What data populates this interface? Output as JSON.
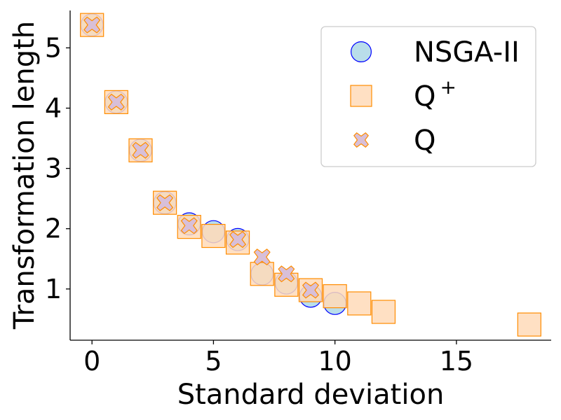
{
  "chart_data": {
    "type": "scatter",
    "xlabel": "Standard deviation",
    "ylabel": "Transformation length",
    "xlim": [
      -0.9,
      18.9
    ],
    "ylim": [
      0.15,
      5.62
    ],
    "xticks": [
      0,
      5,
      10,
      15
    ],
    "yticks": [
      1,
      2,
      3,
      4,
      5
    ],
    "grid": false,
    "legend_position": "top-right",
    "series": [
      {
        "name": "NSGA-II",
        "marker": "circle",
        "fill": "#add8e6",
        "edge": "#0000ff",
        "points": [
          {
            "x": 0,
            "y": 5.38
          },
          {
            "x": 1,
            "y": 4.1
          },
          {
            "x": 2,
            "y": 3.3
          },
          {
            "x": 3,
            "y": 2.43
          },
          {
            "x": 4,
            "y": 2.08
          },
          {
            "x": 5,
            "y": 1.95
          },
          {
            "x": 6,
            "y": 1.82
          },
          {
            "x": 7,
            "y": 1.25
          },
          {
            "x": 8,
            "y": 1.1
          },
          {
            "x": 9,
            "y": 0.88
          },
          {
            "x": 10,
            "y": 0.76
          }
        ]
      },
      {
        "name": "Q",
        "sup": "+",
        "marker": "square",
        "fill": "#ffdab9",
        "edge": "#ff8c00",
        "points": [
          {
            "x": 0,
            "y": 5.38
          },
          {
            "x": 1,
            "y": 4.1
          },
          {
            "x": 2,
            "y": 3.3
          },
          {
            "x": 3,
            "y": 2.43
          },
          {
            "x": 4,
            "y": 2.03
          },
          {
            "x": 5,
            "y": 1.88
          },
          {
            "x": 6,
            "y": 1.77
          },
          {
            "x": 7,
            "y": 1.25
          },
          {
            "x": 8,
            "y": 1.07
          },
          {
            "x": 9,
            "y": 0.98
          },
          {
            "x": 10,
            "y": 0.88
          },
          {
            "x": 11,
            "y": 0.76
          },
          {
            "x": 12,
            "y": 0.62
          },
          {
            "x": 18,
            "y": 0.41
          }
        ]
      },
      {
        "name": "Q",
        "marker": "x",
        "fill": "#d8bfd8",
        "edge": "#ff8c00",
        "points": [
          {
            "x": 0,
            "y": 5.38
          },
          {
            "x": 1,
            "y": 4.1
          },
          {
            "x": 2,
            "y": 3.3
          },
          {
            "x": 3,
            "y": 2.43
          },
          {
            "x": 4,
            "y": 2.05
          },
          {
            "x": 6,
            "y": 1.82
          },
          {
            "x": 7,
            "y": 1.53
          },
          {
            "x": 8,
            "y": 1.25
          },
          {
            "x": 9,
            "y": 0.98
          }
        ]
      }
    ]
  }
}
